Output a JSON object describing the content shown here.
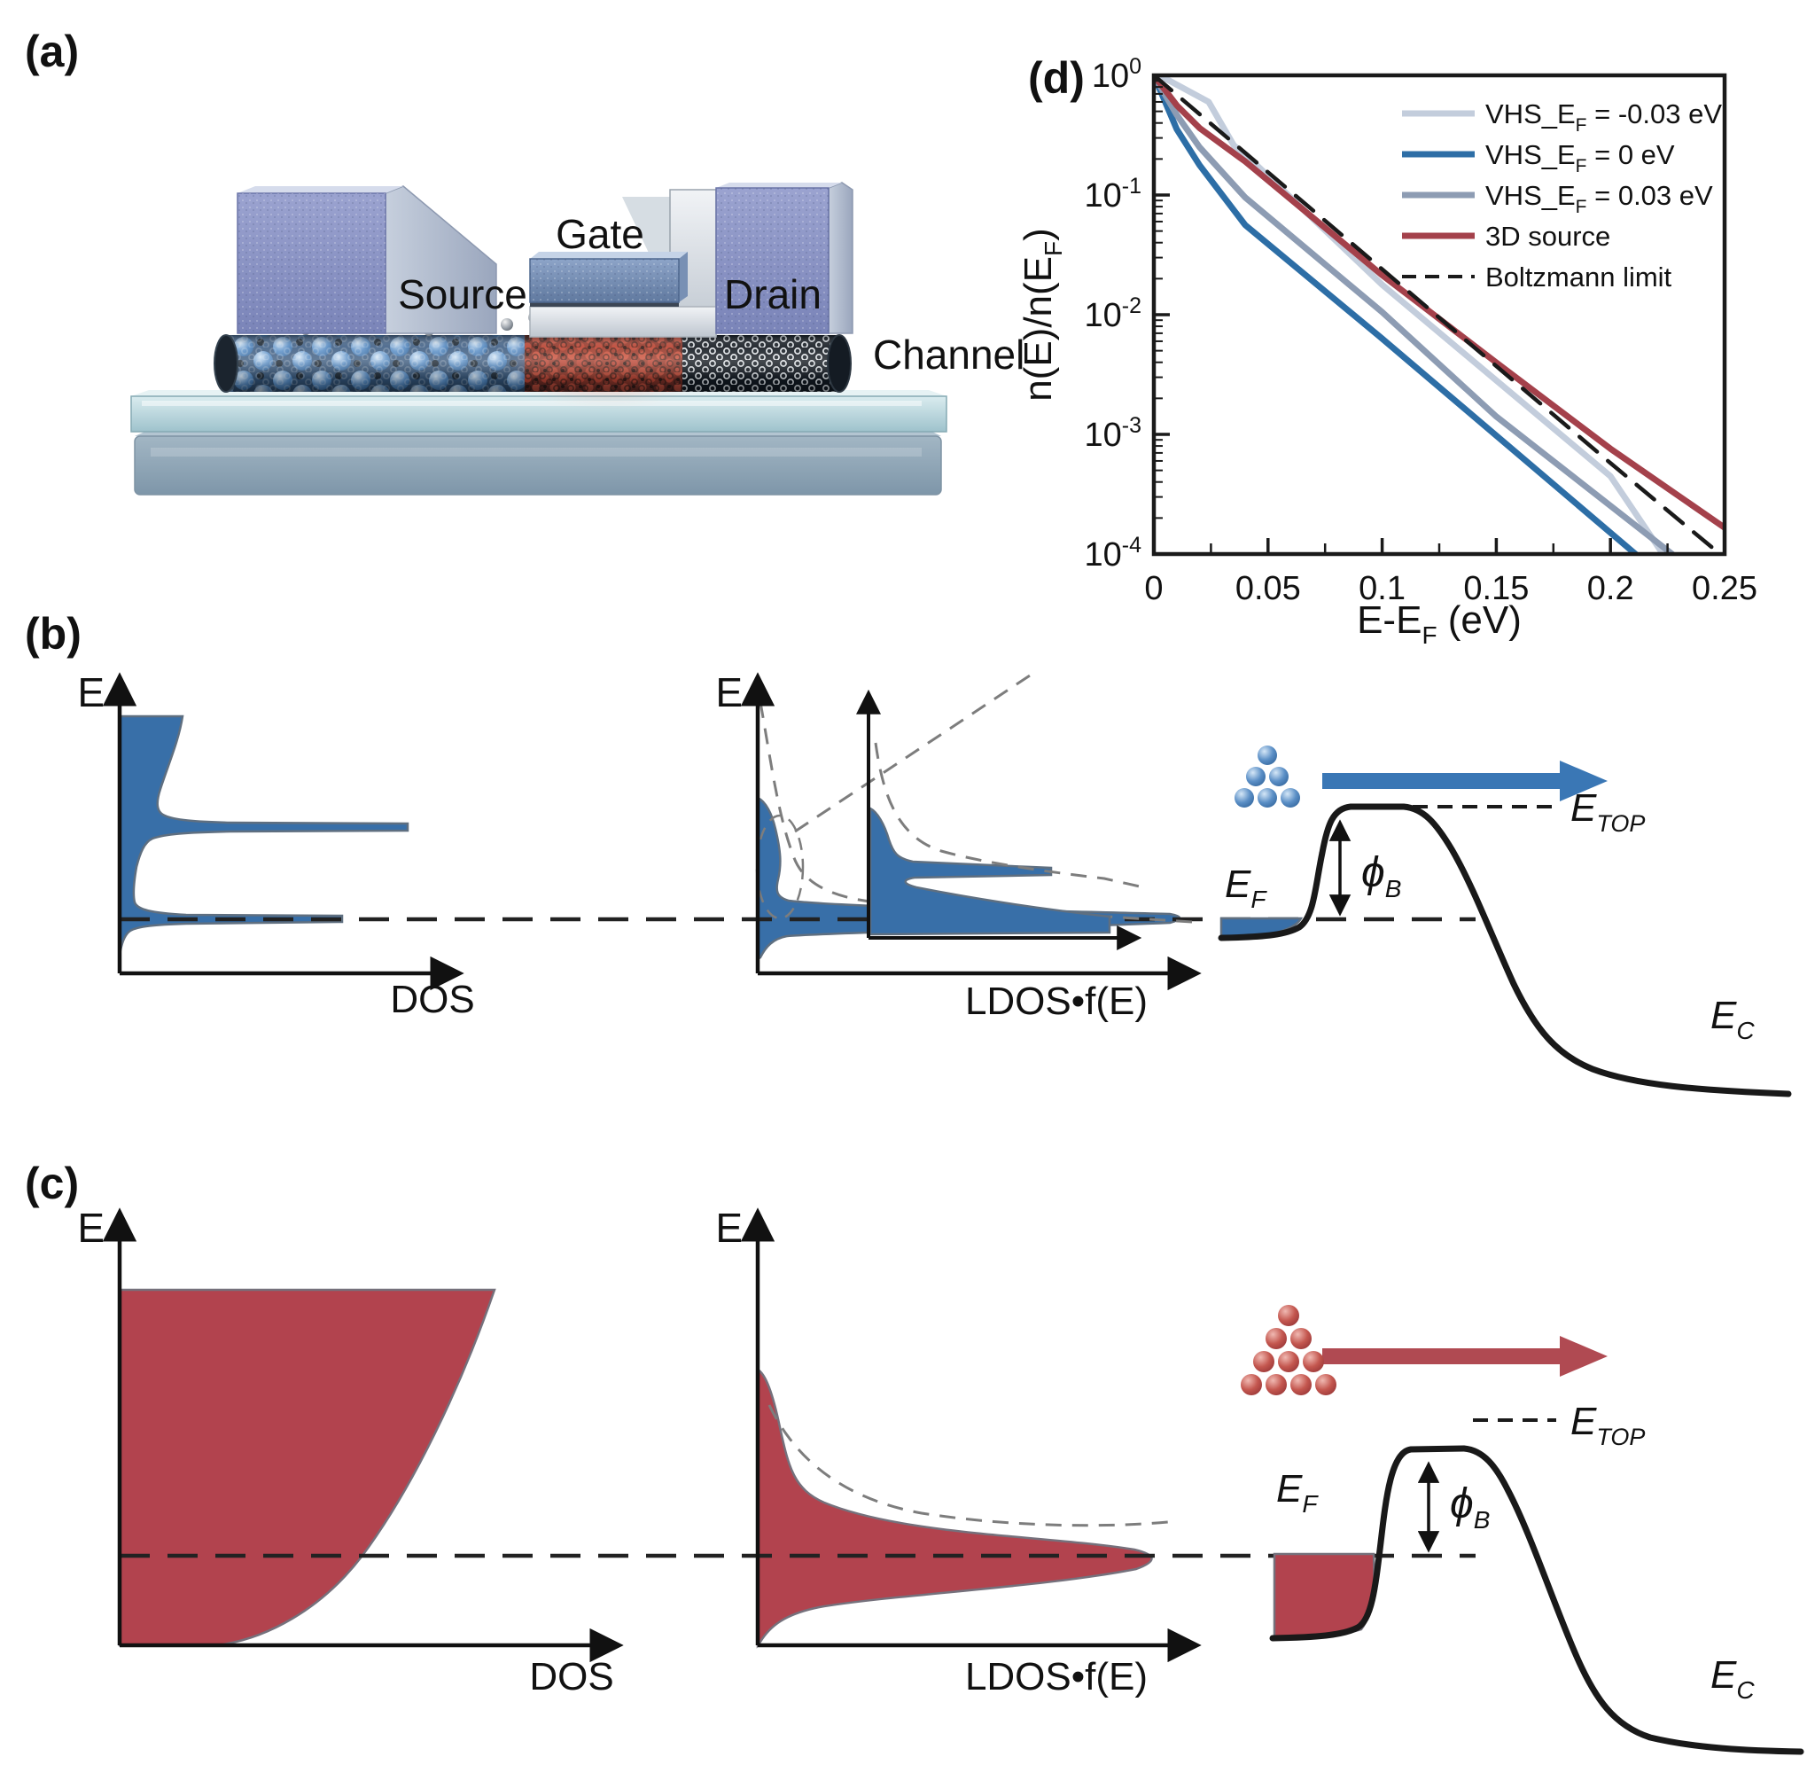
{
  "figure": {
    "panel_a": {
      "label": "(a)",
      "gate": "Gate",
      "source": "Source",
      "drain": "Drain",
      "channel": "Channel"
    },
    "panel_b": {
      "label": "(b)",
      "e": "E",
      "e_mid": "E",
      "dos": "DOS",
      "ldos": "LDOS•f(E)",
      "ef_e": "E",
      "ef_sub": "F",
      "phi": "ϕ",
      "phi_sub": "B",
      "etop_e": "E",
      "etop_sub": "TOP",
      "ec_e": "E",
      "ec_sub": "C"
    },
    "panel_c": {
      "label": "(c)",
      "e": "E",
      "e_mid": "E",
      "dos": "DOS",
      "ldos": "LDOS•f(E)",
      "ef_e": "E",
      "ef_sub": "F",
      "phi": "ϕ",
      "phi_sub": "B",
      "etop_e": "E",
      "etop_sub": "TOP",
      "ec_e": "E",
      "ec_sub": "C"
    },
    "panel_d": {
      "label": "(d)"
    }
  },
  "chart_data": {
    "type": "line",
    "yscale": "log",
    "xlabel": {
      "main": "E-E",
      "sub": "F",
      "suffix": " (eV)"
    },
    "ylabel": {
      "main": "n(E)/n(E",
      "sub": "F",
      "suffix": ")"
    },
    "xlim": [
      0,
      0.25
    ],
    "ylim": [
      0.0001,
      1
    ],
    "grid": false,
    "legend_position": "top-right",
    "xticks": {
      "values": [
        0,
        0.05,
        0.1,
        0.15,
        0.2,
        0.25
      ],
      "labels": [
        "0",
        "0.05",
        "0.1",
        "0.15",
        "0.2",
        "0.25"
      ]
    },
    "yticks": {
      "values": [
        1,
        0.1,
        0.01,
        0.001,
        0.0001
      ],
      "labels": [
        {
          "base": "10",
          "exp": "0"
        },
        {
          "base": "10",
          "exp": "-1"
        },
        {
          "base": "10",
          "exp": "-2"
        },
        {
          "base": "10",
          "exp": "-3"
        },
        {
          "base": "10",
          "exp": "-4"
        }
      ]
    },
    "series": [
      {
        "name_main": "VHS_E",
        "name_sub": "F",
        "name_suffix": " = -0.03 eV",
        "color": "#c3cddc",
        "dashed": false,
        "width": 7,
        "points": [
          [
            0,
            1
          ],
          [
            0.006,
            0.92
          ],
          [
            0.024,
            0.6
          ],
          [
            0.035,
            0.26
          ],
          [
            0.045,
            0.178
          ],
          [
            0.1,
            0.0178
          ],
          [
            0.15,
            0.00282
          ],
          [
            0.2,
            0.000447
          ],
          [
            0.223,
            0.0001
          ]
        ]
      },
      {
        "name_main": "VHS_E",
        "name_sub": "F",
        "name_suffix": " = 0 eV",
        "color": "#2d6ea6",
        "dashed": false,
        "width": 7,
        "points": [
          [
            0,
            1
          ],
          [
            0.01,
            0.355
          ],
          [
            0.02,
            0.178
          ],
          [
            0.04,
            0.0562
          ],
          [
            0.1,
            0.00631
          ],
          [
            0.15,
            0.000977
          ],
          [
            0.211,
            0.0001
          ]
        ]
      },
      {
        "name_main": "VHS_E",
        "name_sub": "F",
        "name_suffix": " = 0.03 eV",
        "color": "#8d9cb3",
        "dashed": false,
        "width": 7,
        "points": [
          [
            0,
            1
          ],
          [
            0.01,
            0.468
          ],
          [
            0.02,
            0.251
          ],
          [
            0.04,
            0.0955
          ],
          [
            0.1,
            0.0105
          ],
          [
            0.15,
            0.00141
          ],
          [
            0.227,
            0.0001
          ]
        ]
      },
      {
        "name_main": "3D source",
        "name_sub": "",
        "name_suffix": "",
        "color": "#a4414b",
        "dashed": false,
        "width": 7,
        "points": [
          [
            0,
            1
          ],
          [
            0.01,
            0.562
          ],
          [
            0.02,
            0.363
          ],
          [
            0.04,
            0.191
          ],
          [
            0.1,
            0.0214
          ],
          [
            0.15,
            0.00398
          ],
          [
            0.2,
            0.000759
          ],
          [
            0.25,
            0.000166
          ]
        ]
      },
      {
        "name_main": "Boltzmann limit",
        "name_sub": "",
        "name_suffix": "",
        "color": "#1a1a1a",
        "dashed": true,
        "width": 4.5,
        "points": [
          [
            0,
            1
          ],
          [
            0.05,
            0.155
          ],
          [
            0.1,
            0.024
          ],
          [
            0.15,
            0.00372
          ],
          [
            0.2,
            0.000575
          ],
          [
            0.248,
            0.0001
          ]
        ]
      }
    ]
  }
}
